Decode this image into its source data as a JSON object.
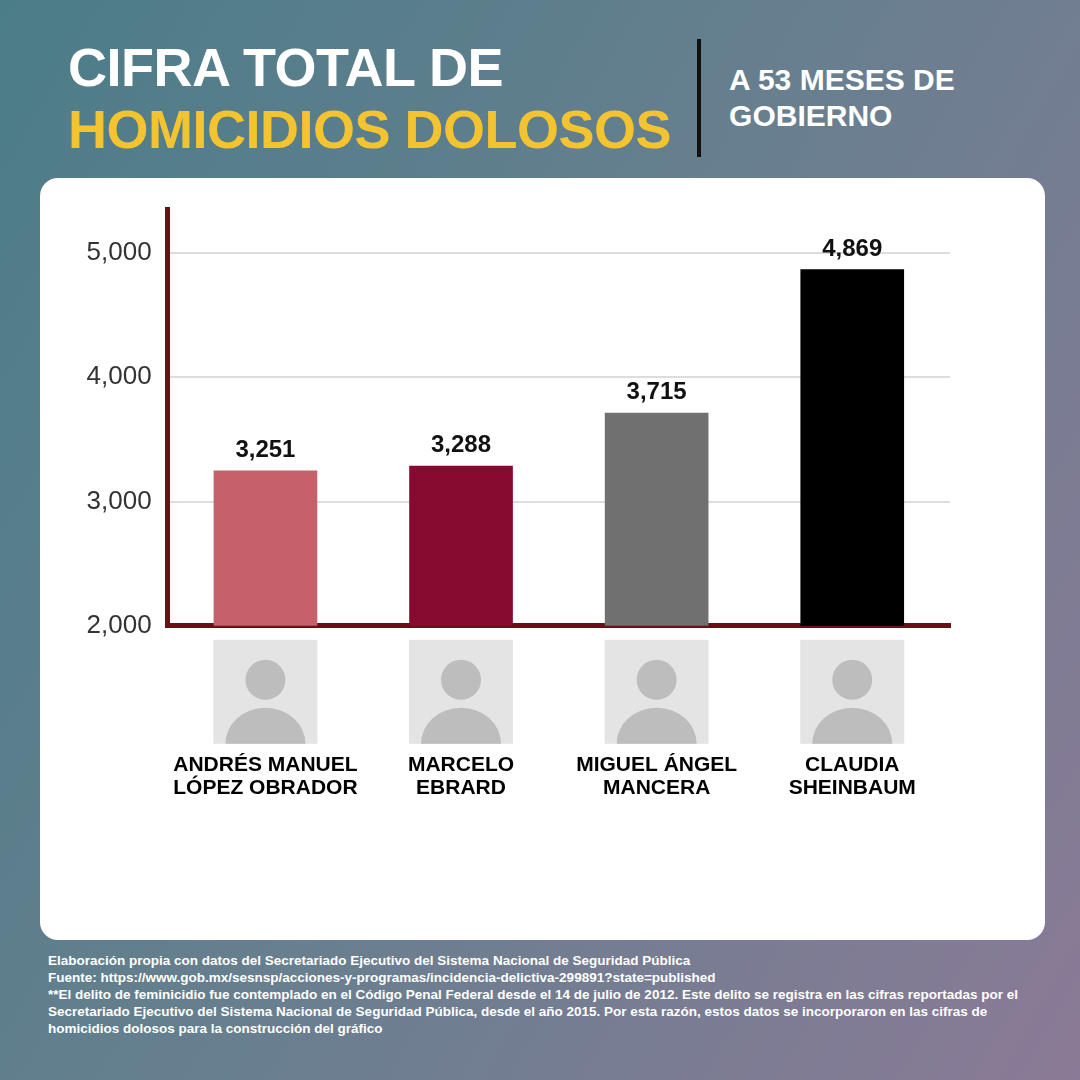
{
  "chart_data": {
    "type": "bar",
    "title": [
      "CIFRA TOTAL DE",
      "HOMICIDIOS DOLOSOS"
    ],
    "subtitle": "A 53 MESES DE GOBIERNO",
    "categories": [
      "ANDRÉS MANUEL LÓPEZ OBRADOR",
      "MARCELO EBRARD",
      "MIGUEL ÁNGEL MANCERA",
      "CLAUDIA SHEINBAUM"
    ],
    "values": [
      3251,
      3288,
      3715,
      4869
    ],
    "value_labels": [
      "3,251",
      "3,288",
      "3,715",
      "4,869"
    ],
    "colors": [
      "#c6606b",
      "#870a31",
      "#707070",
      "#000000"
    ],
    "ylim": [
      2000,
      5350
    ],
    "yticks": [
      {
        "value": 2000,
        "label": "2,000"
      },
      {
        "value": 3000,
        "label": "3,000"
      },
      {
        "value": 4000,
        "label": "4,000"
      },
      {
        "value": 5000,
        "label": "5,000"
      }
    ],
    "grid": true,
    "data_labels": true,
    "notes": [
      "Elaboración propia con datos del Secretariado Ejecutivo del Sistema Nacional de Seguridad Pública",
      "Fuente: https://www.gob.mx/sesnsp/acciones-y-programas/incidencia-delictiva-299891?state=published",
      "**El delito de feminicidio fue contemplado en el Código Penal Federal desde el 14 de julio de 2012. Este delito se registra en las cifras reportadas por el Secretariado Ejecutivo del Sistema Nacional de Seguridad Pública, desde el año 2015. Por esta razón, estos datos se incorporaron en las cifras de homicidios dolosos para la construcción del gráfico"
    ]
  }
}
